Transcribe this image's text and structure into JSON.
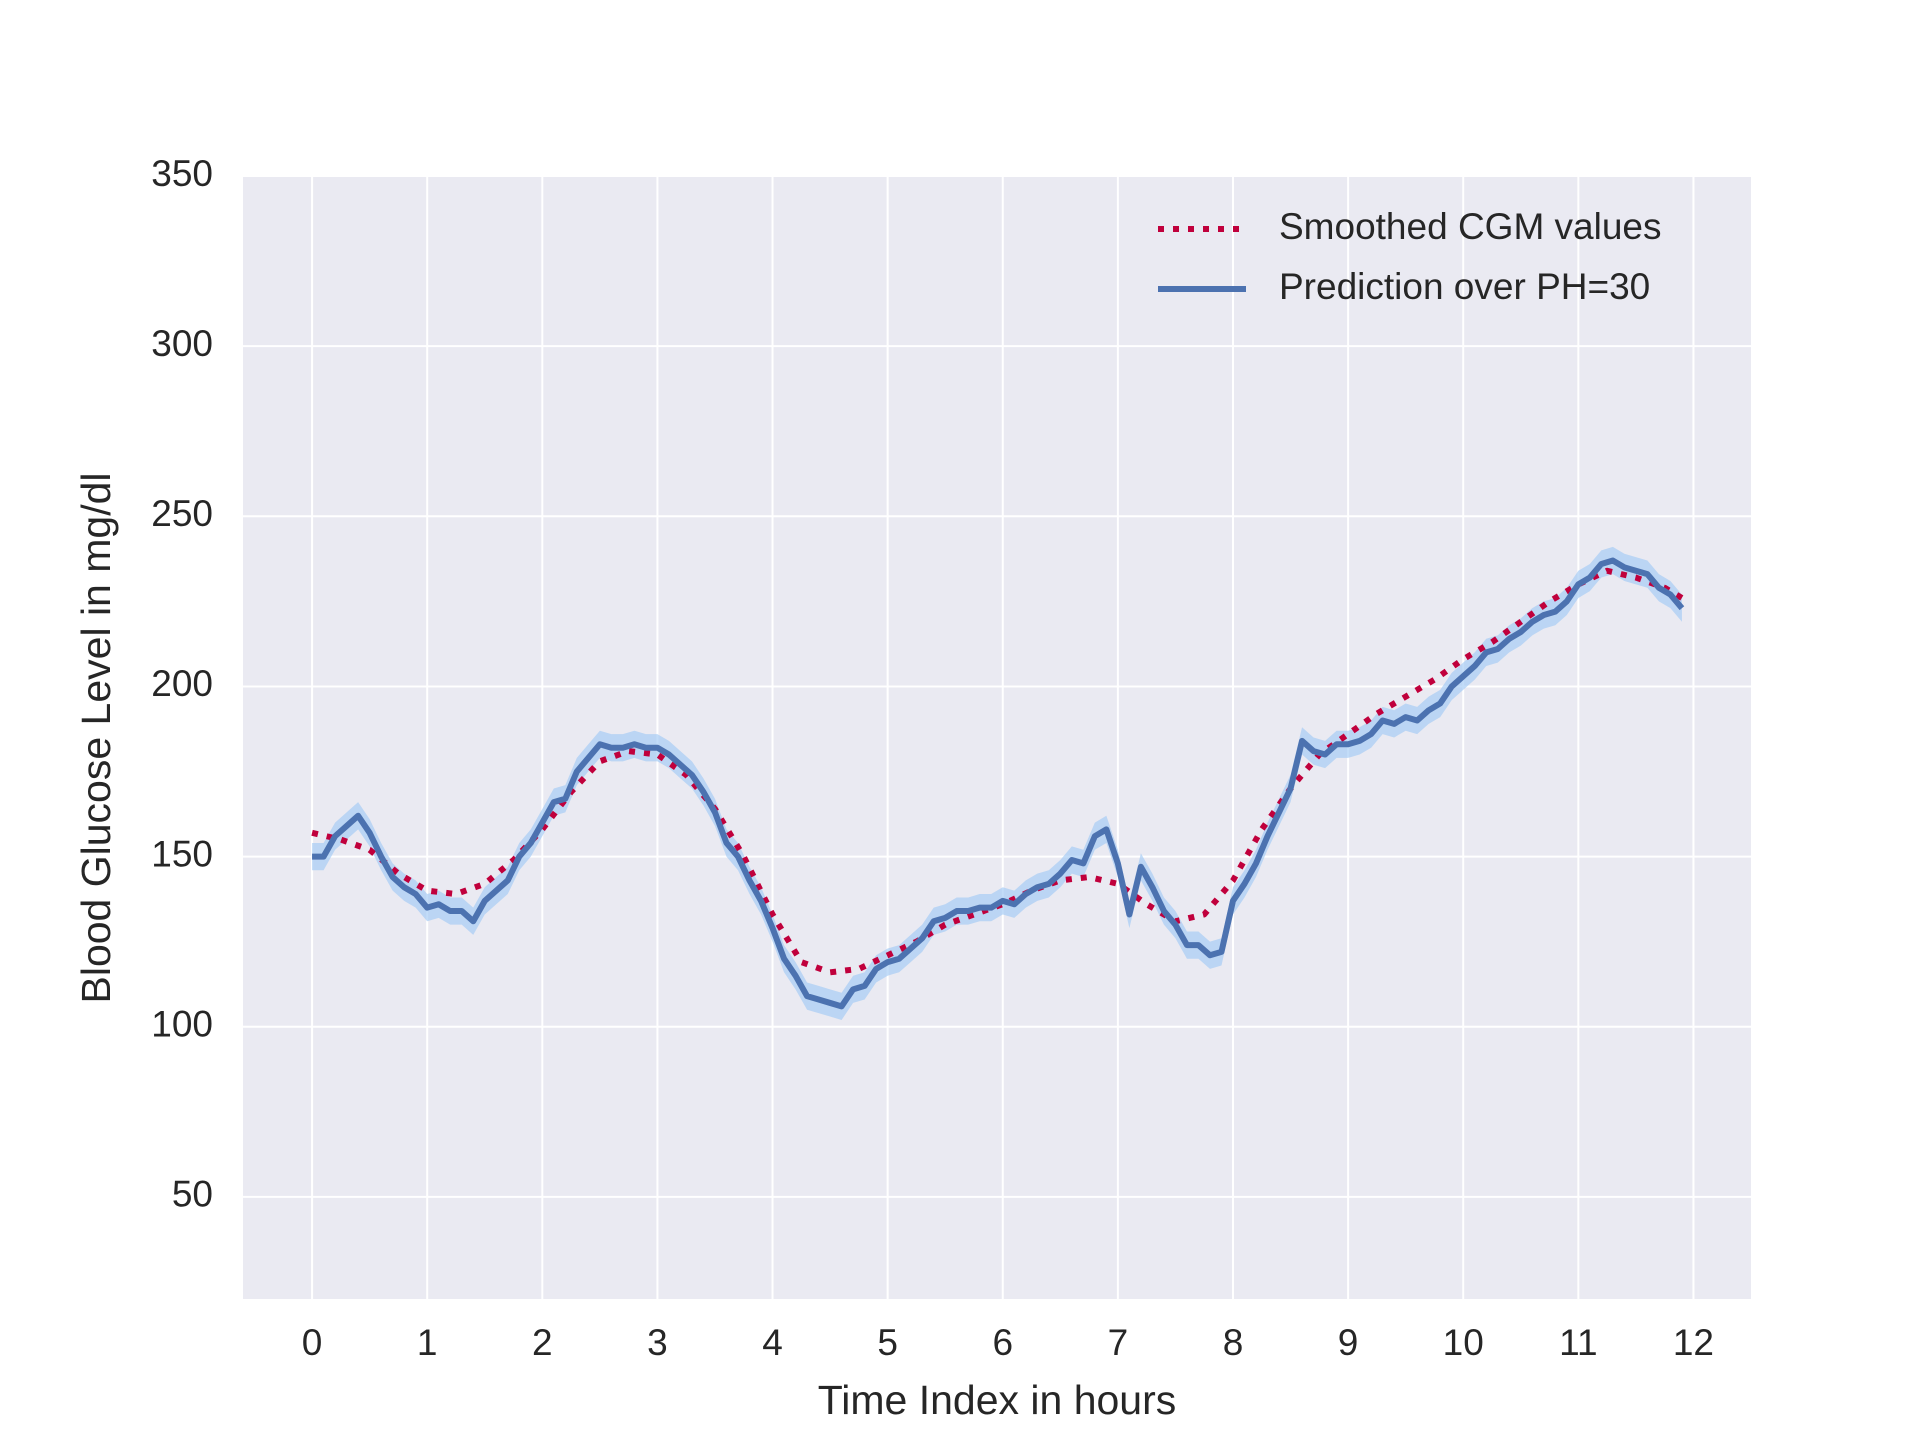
{
  "chart_data": {
    "type": "line",
    "xlabel": "Time Index in hours",
    "ylabel": "Blood Glucose Level in mg/dl",
    "xlim": [
      -0.6,
      12.5
    ],
    "xticks": [
      0,
      1,
      2,
      3,
      4,
      5,
      6,
      7,
      8,
      9,
      10,
      11,
      12
    ],
    "ylim": [
      20,
      350
    ],
    "yticks": [
      50,
      100,
      150,
      200,
      250,
      300,
      350
    ],
    "grid": true,
    "legend": "upper right",
    "series": [
      {
        "name": "Smoothed CGM values",
        "color": "#c0003c",
        "style": "dotted",
        "x": [
          0,
          0.25,
          0.5,
          0.75,
          1,
          1.25,
          1.5,
          1.75,
          2,
          2.25,
          2.5,
          2.75,
          3,
          3.25,
          3.5,
          3.75,
          4,
          4.25,
          4.5,
          4.75,
          5,
          5.25,
          5.5,
          5.75,
          6,
          6.25,
          6.5,
          6.75,
          7,
          7.25,
          7.5,
          7.75,
          8,
          8.25,
          8.5,
          8.75,
          9,
          9.25,
          9.5,
          9.75,
          10,
          10.25,
          10.5,
          10.75,
          11,
          11.25,
          11.5,
          11.75,
          11.9
        ],
        "values": [
          157,
          155,
          152,
          145,
          140,
          139,
          142,
          149,
          158,
          169,
          178,
          181,
          180,
          174,
          164,
          150,
          133,
          119,
          116,
          117,
          121,
          125,
          130,
          133,
          136,
          140,
          143,
          144,
          142,
          136,
          131,
          133,
          143,
          158,
          170,
          180,
          186,
          192,
          197,
          202,
          208,
          213,
          219,
          225,
          230,
          234,
          232,
          229,
          226
        ]
      },
      {
        "name": "Prediction over PH=30",
        "color": "#4c72b0",
        "style": "solid",
        "band_color": "#a1c9f4",
        "error": 4,
        "x": [
          0,
          0.1,
          0.2,
          0.3,
          0.4,
          0.5,
          0.6,
          0.7,
          0.8,
          0.9,
          1,
          1.1,
          1.2,
          1.3,
          1.4,
          1.5,
          1.6,
          1.7,
          1.8,
          1.9,
          2,
          2.1,
          2.2,
          2.3,
          2.4,
          2.5,
          2.6,
          2.7,
          2.8,
          2.9,
          3,
          3.1,
          3.2,
          3.3,
          3.4,
          3.5,
          3.6,
          3.7,
          3.8,
          3.9,
          4,
          4.1,
          4.2,
          4.3,
          4.4,
          4.5,
          4.6,
          4.7,
          4.8,
          4.9,
          5,
          5.1,
          5.2,
          5.3,
          5.4,
          5.5,
          5.6,
          5.7,
          5.8,
          5.9,
          6,
          6.1,
          6.2,
          6.3,
          6.4,
          6.5,
          6.6,
          6.7,
          6.8,
          6.9,
          7,
          7.1,
          7.2,
          7.3,
          7.4,
          7.5,
          7.6,
          7.7,
          7.8,
          7.9,
          8,
          8.1,
          8.2,
          8.3,
          8.4,
          8.5,
          8.6,
          8.7,
          8.8,
          8.9,
          9,
          9.1,
          9.2,
          9.3,
          9.4,
          9.5,
          9.6,
          9.7,
          9.8,
          9.9,
          10,
          10.1,
          10.2,
          10.3,
          10.4,
          10.5,
          10.6,
          10.7,
          10.8,
          10.9,
          11,
          11.1,
          11.2,
          11.3,
          11.4,
          11.5,
          11.6,
          11.7,
          11.8,
          11.9
        ],
        "values": [
          150,
          150,
          156,
          159,
          162,
          157,
          150,
          144,
          141,
          139,
          135,
          136,
          134,
          134,
          131,
          137,
          140,
          143,
          150,
          154,
          160,
          166,
          167,
          175,
          179,
          183,
          182,
          182,
          183,
          182,
          182,
          180,
          177,
          174,
          169,
          163,
          154,
          150,
          143,
          137,
          129,
          120,
          115,
          109,
          108,
          107,
          106,
          111,
          112,
          117,
          119,
          120,
          123,
          126,
          131,
          132,
          134,
          134,
          135,
          135,
          137,
          136,
          139,
          141,
          142,
          145,
          149,
          148,
          156,
          158,
          148,
          133,
          147,
          141,
          134,
          130,
          124,
          124,
          121,
          122,
          137,
          142,
          148,
          156,
          163,
          170,
          184,
          181,
          180,
          183,
          183,
          184,
          186,
          190,
          189,
          191,
          190,
          193,
          195,
          200,
          203,
          206,
          210,
          211,
          214,
          216,
          219,
          221,
          222,
          225,
          230,
          232,
          236,
          237,
          235,
          234,
          233,
          229,
          227,
          223
        ]
      }
    ]
  }
}
